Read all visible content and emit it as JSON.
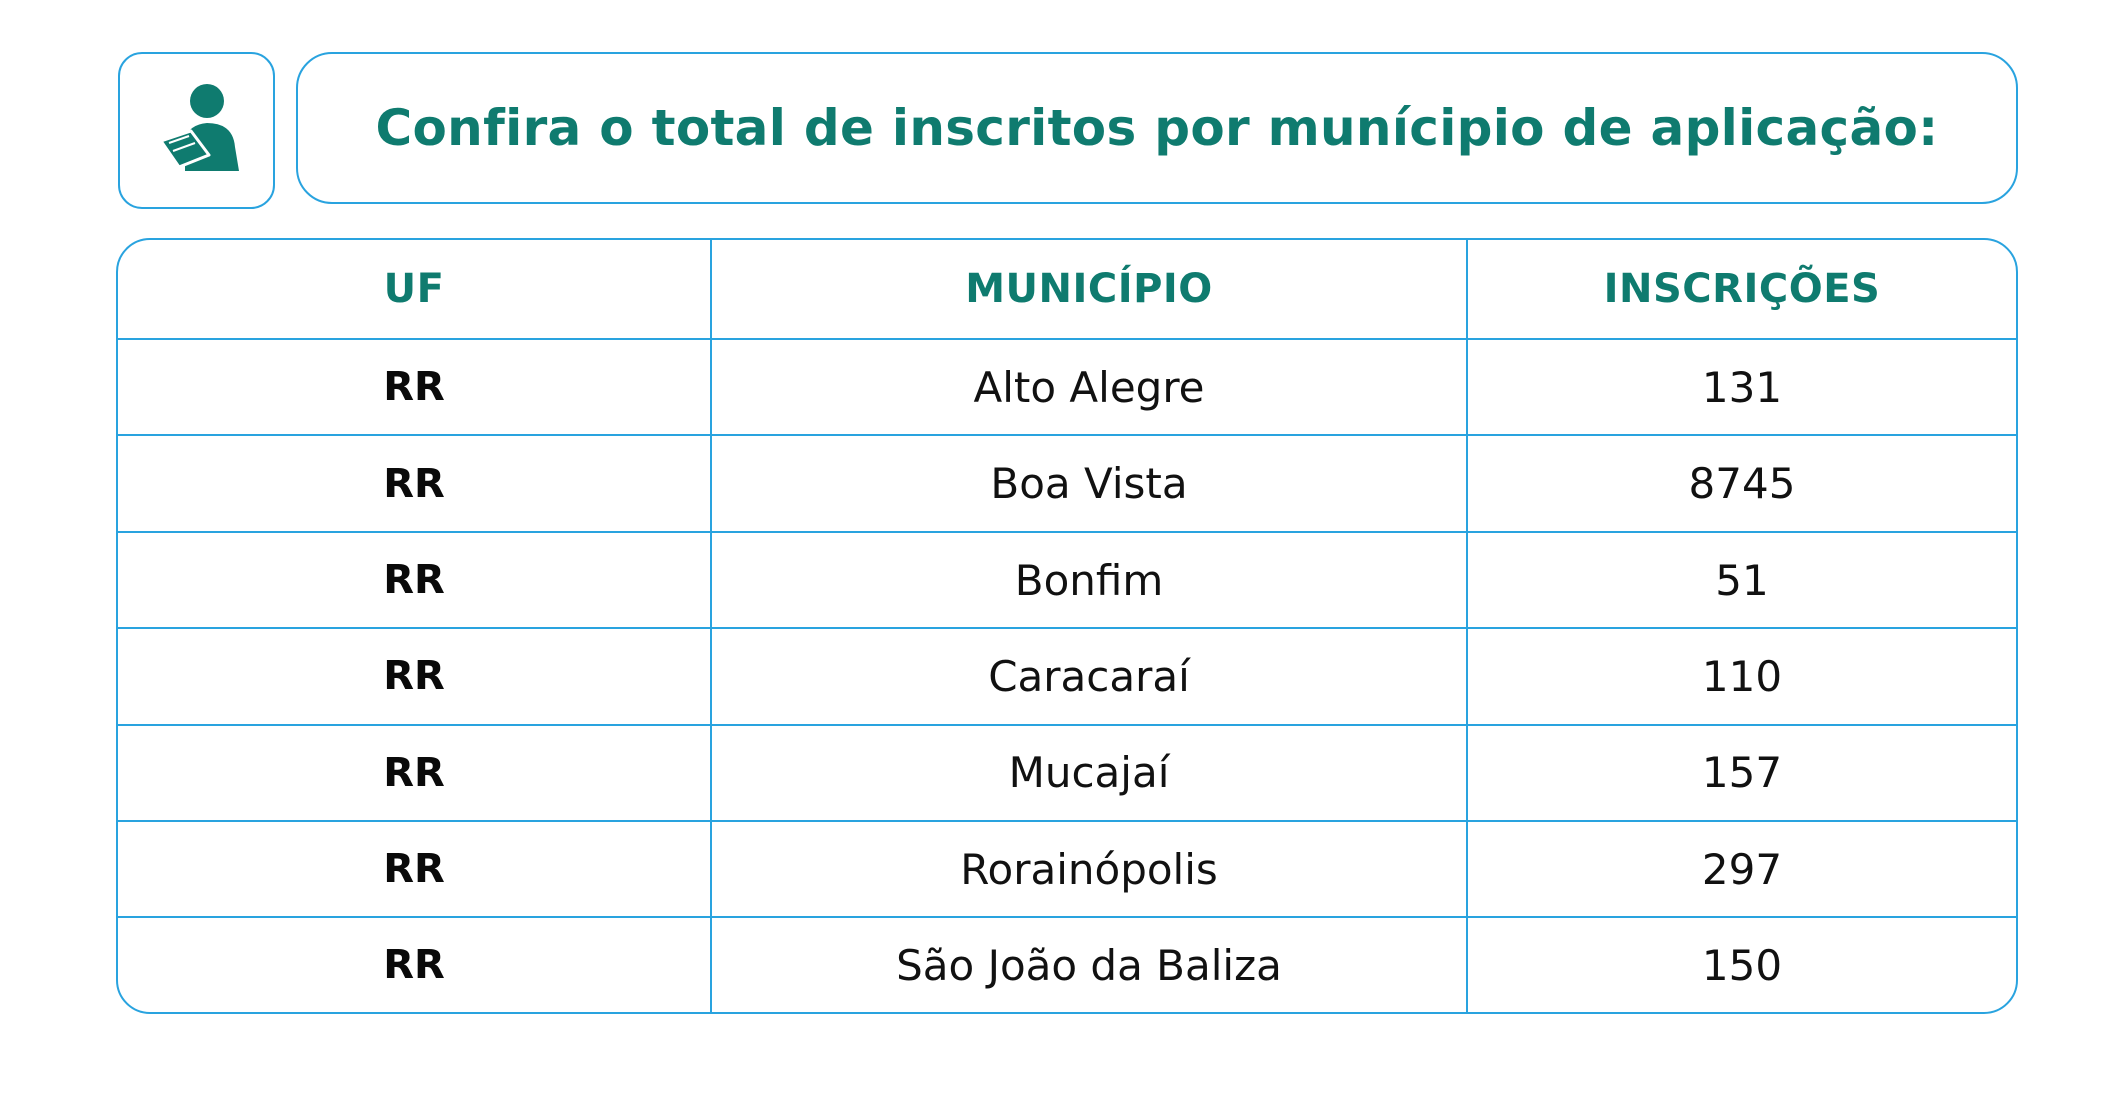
{
  "header": {
    "title": "Confira o total de inscritos por munícipio de aplicação:",
    "icon": "reader-person-icon"
  },
  "table": {
    "columns": [
      "UF",
      "MUNICÍPIO",
      "INSCRIÇÕES"
    ],
    "rows": [
      {
        "uf": "RR",
        "municipio": "Alto Alegre",
        "inscricoes": "131"
      },
      {
        "uf": "RR",
        "municipio": "Boa Vista",
        "inscricoes": "8745"
      },
      {
        "uf": "RR",
        "municipio": "Bonfim",
        "inscricoes": "51"
      },
      {
        "uf": "RR",
        "municipio": "Caracaraí",
        "inscricoes": "110"
      },
      {
        "uf": "RR",
        "municipio": "Mucajaí",
        "inscricoes": "157"
      },
      {
        "uf": "RR",
        "municipio": "Rorainópolis",
        "inscricoes": "297"
      },
      {
        "uf": "RR",
        "municipio": "São João da Baliza",
        "inscricoes": "150"
      }
    ]
  },
  "colors": {
    "accent_teal": "#0f7b6f",
    "border_blue": "#29a3df",
    "text_dark": "#111111"
  }
}
